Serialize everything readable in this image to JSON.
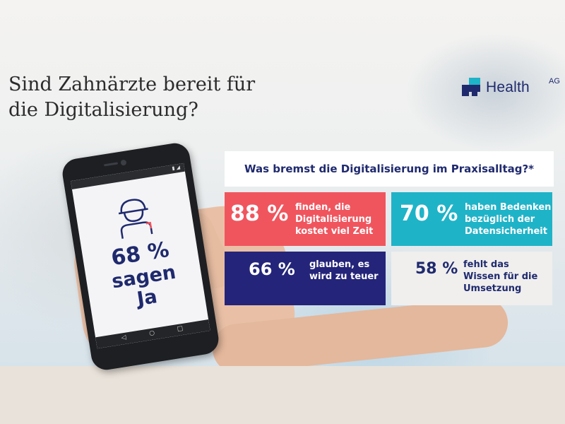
{
  "headline": {
    "line1": "Sind Zahnärzte bereit für",
    "line2": "die Digitalisierung?"
  },
  "logo": {
    "name": "Health",
    "superscript": "AG",
    "icon": "health-ag-logo-icon",
    "color": "#1f2a6e"
  },
  "phone": {
    "percent": "68 %",
    "line1": "sagen",
    "line2": "Ja",
    "icon": "dentist-avatar-icon"
  },
  "survey": {
    "title": "Was bremst die Digitalisierung im Praxisalltag?*",
    "stats": [
      {
        "percent": "88 %",
        "lines": [
          "finden, die",
          "Digitalisierung",
          "kostet viel Zeit"
        ],
        "color": "#f0555e"
      },
      {
        "percent": "70 %",
        "lines": [
          "haben Bedenken",
          "bezüglich der",
          "Datensicherheit"
        ],
        "color": "#1fb3c8"
      },
      {
        "percent": "66 %",
        "lines": [
          "glauben, es",
          "wird zu teuer"
        ],
        "color": "#24247a"
      },
      {
        "percent": "58 %",
        "lines": [
          "fehlt das",
          "Wissen für die",
          "Umsetzung"
        ],
        "color": "#f0efee"
      }
    ]
  }
}
